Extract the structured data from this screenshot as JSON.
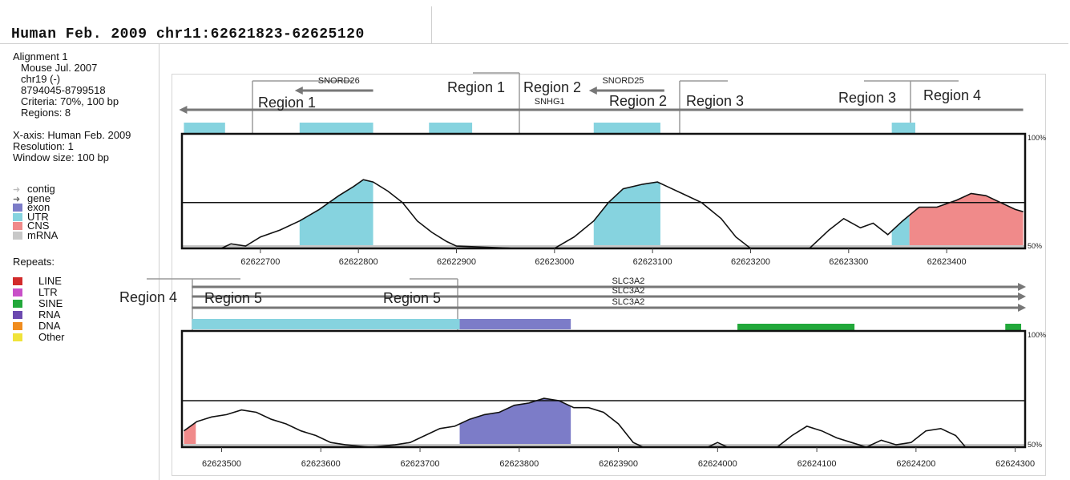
{
  "header": {
    "title": "Human Feb. 2009 chr11:62621823-62625120"
  },
  "info": {
    "alignment": "Alignment 1",
    "species": "Mouse Jul. 2007",
    "chrom": "chr19 (-)",
    "coords": "8794045-8799518",
    "criteria": "Criteria: 70%, 100 bp",
    "regions": "Regions: 8",
    "xaxis": "X-axis: Human Feb. 2009",
    "resolution": "Resolution: 1",
    "window": "Window size: 100 bp"
  },
  "feature_legend": [
    {
      "label": "contig",
      "kind": "arrow",
      "color": "#bdbdbd"
    },
    {
      "label": "gene",
      "kind": "arrow",
      "color": "#666666"
    },
    {
      "label": "exon",
      "kind": "box",
      "color": "#7c7cc8"
    },
    {
      "label": "UTR",
      "kind": "box",
      "color": "#86d3df"
    },
    {
      "label": "CNS",
      "kind": "box",
      "color": "#f08a8a"
    },
    {
      "label": "mRNA",
      "kind": "box",
      "color": "#c8c8c8"
    }
  ],
  "repeats_title": "Repeats:",
  "repeats_legend": [
    {
      "label": "LINE",
      "color": "#d22b2b"
    },
    {
      "label": "LTR",
      "color": "#c850c8"
    },
    {
      "label": "SINE",
      "color": "#22a83a"
    },
    {
      "label": "RNA",
      "color": "#6c4ab0"
    },
    {
      "label": "DNA",
      "color": "#f08c1e"
    },
    {
      "label": "Other",
      "color": "#f0e33a"
    }
  ],
  "chart_data": [
    {
      "type": "area",
      "xlim": [
        62622620,
        62623480
      ],
      "ylim": [
        50,
        100
      ],
      "x_ticks": [
        62622700,
        62622800,
        62622900,
        62623000,
        62623100,
        62623200,
        62623300,
        62623400
      ],
      "y_labels": [
        "100%",
        "50%"
      ],
      "threshold": 70,
      "genes": [
        {
          "name": "SNORD26",
          "start": 62622740,
          "end": 62622815,
          "dir": "-",
          "label_at": 62622780
        },
        {
          "name": "SNORD25",
          "start": 62623040,
          "end": 62623112,
          "dir": "-",
          "label_at": 62623070
        },
        {
          "name": "SNHG1",
          "start": 62622622,
          "end": 62623478,
          "dir": "-",
          "label_at": 62622995
        }
      ],
      "utr_blocks": [
        [
          62622622,
          62622664
        ],
        [
          62622740,
          62622815
        ],
        [
          62622872,
          62622916
        ],
        [
          62623040,
          62623108
        ],
        [
          62623344,
          62623368
        ]
      ],
      "region_labels": [
        "Region 1",
        "Region 1",
        "Region 2",
        "Region 2",
        "Region 3",
        "Region 3",
        "Region 4"
      ],
      "conservation": [
        [
          62622660,
          50
        ],
        [
          62622670,
          52
        ],
        [
          62622685,
          51
        ],
        [
          62622700,
          55
        ],
        [
          62622720,
          58
        ],
        [
          62622740,
          62
        ],
        [
          62622760,
          67
        ],
        [
          62622780,
          73
        ],
        [
          62622795,
          77
        ],
        [
          62622805,
          80
        ],
        [
          62622815,
          79
        ],
        [
          62622830,
          75
        ],
        [
          62622845,
          70
        ],
        [
          62622860,
          62
        ],
        [
          62622875,
          57
        ],
        [
          62622890,
          53
        ],
        [
          62622900,
          51
        ],
        [
          62622960,
          50
        ],
        [
          62623000,
          50
        ],
        [
          62623020,
          55
        ],
        [
          62623040,
          62
        ],
        [
          62623055,
          70
        ],
        [
          62623070,
          76
        ],
        [
          62623090,
          78
        ],
        [
          62623105,
          79
        ],
        [
          62623115,
          77
        ],
        [
          62623130,
          74
        ],
        [
          62623150,
          70
        ],
        [
          62623170,
          63
        ],
        [
          62623185,
          55
        ],
        [
          62623200,
          50
        ],
        [
          62623260,
          50
        ],
        [
          62623280,
          58
        ],
        [
          62623295,
          63
        ],
        [
          62623312,
          59
        ],
        [
          62623325,
          61
        ],
        [
          62623340,
          56
        ],
        [
          62623355,
          62
        ],
        [
          62623372,
          68
        ],
        [
          62623390,
          68
        ],
        [
          62623410,
          71
        ],
        [
          62623425,
          74
        ],
        [
          62623440,
          73
        ],
        [
          62623455,
          70
        ],
        [
          62623470,
          67
        ],
        [
          62623478,
          66
        ]
      ],
      "shaded": [
        {
          "range": [
            62622740,
            62622815
          ],
          "color": "#86d3df"
        },
        {
          "range": [
            62623040,
            62623108
          ],
          "color": "#86d3df"
        },
        {
          "range": [
            62623344,
            62623362
          ],
          "color": "#86d3df"
        },
        {
          "range": [
            62623362,
            62623478
          ],
          "color": "#f08a8a"
        }
      ]
    },
    {
      "type": "area",
      "xlim": [
        62623460,
        62624310
      ],
      "ylim": [
        50,
        100
      ],
      "x_ticks": [
        62623500,
        62623600,
        62623700,
        62623800,
        62623900,
        62624000,
        62624100,
        62624200,
        62624300
      ],
      "y_labels": [
        "100%",
        "50%"
      ],
      "threshold": 70,
      "genes": [
        {
          "name": "SLC3A2",
          "start": 62623470,
          "end": 62624306,
          "dir": "+",
          "label_at": 62623910
        },
        {
          "name": "SLC3A2",
          "start": 62623470,
          "end": 62624306,
          "dir": "+",
          "label_at": 62623910
        },
        {
          "name": "SLC3A2",
          "start": 62623470,
          "end": 62624306,
          "dir": "+",
          "label_at": 62623910
        }
      ],
      "utr_blocks": [
        [
          62623470,
          62623740
        ]
      ],
      "exon_blocks": [
        [
          62623740,
          62623852
        ]
      ],
      "repeats": [
        {
          "range": [
            62624020,
            62624138
          ],
          "type": "SINE"
        },
        {
          "range": [
            62624290,
            62624306
          ],
          "type": "SINE"
        }
      ],
      "region_labels": [
        "Region 4",
        "Region 5",
        "Region 5"
      ],
      "conservation": [
        [
          62623462,
          57
        ],
        [
          62623475,
          61
        ],
        [
          62623490,
          63
        ],
        [
          62623505,
          64
        ],
        [
          62623520,
          66
        ],
        [
          62623535,
          65
        ],
        [
          62623550,
          62
        ],
        [
          62623565,
          60
        ],
        [
          62623580,
          57
        ],
        [
          62623595,
          55
        ],
        [
          62623610,
          52
        ],
        [
          62623625,
          51
        ],
        [
          62623650,
          50
        ],
        [
          62623675,
          51
        ],
        [
          62623690,
          52
        ],
        [
          62623705,
          55
        ],
        [
          62623720,
          58
        ],
        [
          62623735,
          59
        ],
        [
          62623750,
          62
        ],
        [
          62623765,
          64
        ],
        [
          62623780,
          65
        ],
        [
          62623795,
          68
        ],
        [
          62623810,
          69
        ],
        [
          62623825,
          71
        ],
        [
          62623840,
          70
        ],
        [
          62623855,
          67
        ],
        [
          62623870,
          67
        ],
        [
          62623885,
          65
        ],
        [
          62623900,
          60
        ],
        [
          62623915,
          52
        ],
        [
          62623925,
          50
        ],
        [
          62623990,
          50
        ],
        [
          62624000,
          52
        ],
        [
          62624010,
          50
        ],
        [
          62624060,
          50
        ],
        [
          62624075,
          55
        ],
        [
          62624090,
          59
        ],
        [
          62624105,
          57
        ],
        [
          62624120,
          54
        ],
        [
          62624135,
          52
        ],
        [
          62624150,
          50
        ],
        [
          62624165,
          53
        ],
        [
          62624180,
          51
        ],
        [
          62624195,
          52
        ],
        [
          62624210,
          57
        ],
        [
          62624225,
          58
        ],
        [
          62624240,
          55
        ],
        [
          62624250,
          50
        ],
        [
          62624306,
          50
        ]
      ],
      "shaded": [
        {
          "range": [
            62623462,
            62623474
          ],
          "color": "#f08a8a"
        },
        {
          "range": [
            62623740,
            62623852
          ],
          "color": "#7c7cc8"
        }
      ]
    }
  ]
}
